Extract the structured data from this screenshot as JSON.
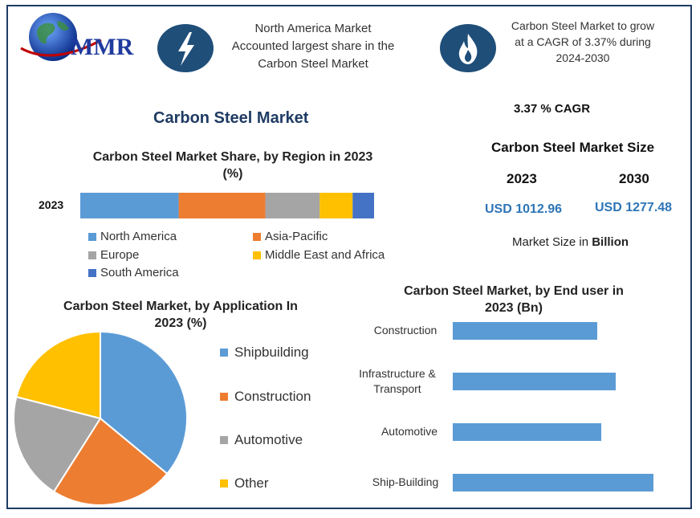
{
  "header": {
    "logo_text": "MMR",
    "box1_text_lines": [
      "North America Market",
      "Accounted largest share in the",
      "Carbon Steel Market"
    ],
    "box2_text_lines": [
      "Carbon Steel Market to grow",
      "at a CAGR of 3.37% during",
      "2024-2030"
    ],
    "icon1": "lightning-icon",
    "icon2": "flame-icon"
  },
  "main_title": "Carbon Steel Market",
  "cagr_text": "3.37 % CAGR",
  "market_size": {
    "title": "Carbon Steel Market Size",
    "year1": "2023",
    "year2": "2030",
    "value1": "USD 1012.96",
    "value2": "USD 1277.48",
    "note_prefix": "Market Size in ",
    "note_bold": "Billion"
  },
  "colors": {
    "blue": "#5b9bd5",
    "orange": "#ed7d31",
    "gray": "#a5a5a5",
    "yellow": "#ffc000",
    "darkblue": "#4472c4",
    "navy": "#1f4e79"
  },
  "chart_data": [
    {
      "type": "bar",
      "orientation": "horizontal-stacked",
      "title_lines": [
        "Carbon Steel Market Share, by Region in 2023",
        "(%)"
      ],
      "categories": [
        "2023"
      ],
      "series": [
        {
          "name": "North America",
          "values": [
            33.5
          ],
          "color": "#5b9bd5"
        },
        {
          "name": "Asia-Pacific",
          "values": [
            29.5
          ],
          "color": "#ed7d31"
        },
        {
          "name": "Europe",
          "values": [
            18.5
          ],
          "color": "#a5a5a5"
        },
        {
          "name": "Middle East and Africa",
          "values": [
            11.2
          ],
          "color": "#ffc000"
        },
        {
          "name": "South America",
          "values": [
            7.3
          ],
          "color": "#4472c4"
        }
      ],
      "legend_placement": "bottom"
    },
    {
      "type": "pie",
      "title_lines": [
        "Carbon Steel Market, by Application In",
        "2023 (%)"
      ],
      "slices": [
        {
          "name": "Shipbuilding",
          "value": 36,
          "color": "#5b9bd5"
        },
        {
          "name": "Construction",
          "value": 23,
          "color": "#ed7d31"
        },
        {
          "name": "Automotive",
          "value": 20,
          "color": "#a5a5a5"
        },
        {
          "name": "Other",
          "value": 21,
          "color": "#ffc000"
        }
      ],
      "legend_placement": "right"
    },
    {
      "type": "bar",
      "orientation": "horizontal",
      "title_lines": [
        "Carbon Steel Market, by End user in",
        "2023 (Bn)"
      ],
      "categories": [
        [
          "Construction"
        ],
        [
          "Infrastructure &",
          "Transport"
        ],
        [
          "Automotive"
        ],
        [
          "Ship-Building"
        ]
      ],
      "values": [
        180,
        203,
        185,
        250
      ],
      "xlim": [
        0,
        260
      ],
      "color": "#5b9bd5",
      "grid": false
    }
  ]
}
